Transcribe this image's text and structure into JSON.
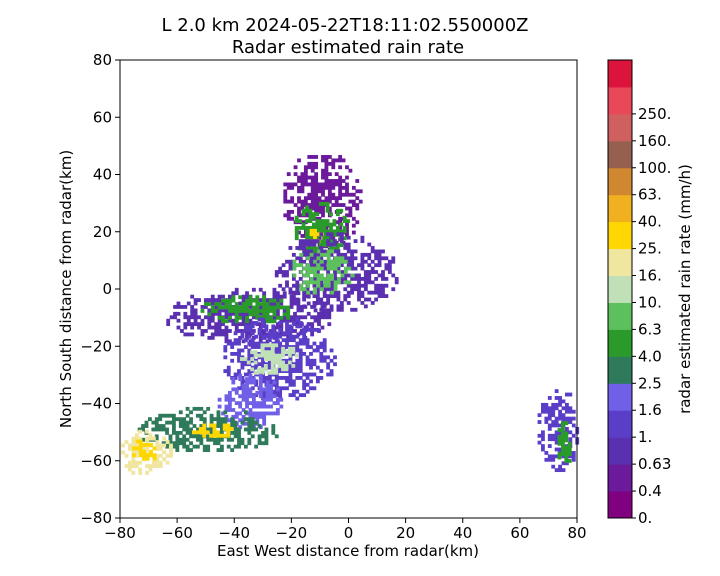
{
  "chart_data": {
    "type": "heatmap",
    "title_line1": "L 2.0 km 2024-05-22T18:11:02.550000Z",
    "title_line2": "Radar estimated rain rate",
    "xlabel": "East West distance from radar(km)",
    "ylabel": "North South distance from radar(km)",
    "xlim": [
      -80,
      80
    ],
    "ylim": [
      -80,
      80
    ],
    "xticks": [
      "−80",
      "−60",
      "−40",
      "−20",
      "0",
      "20",
      "40",
      "60",
      "80"
    ],
    "yticks": [
      "80",
      "60",
      "40",
      "20",
      "0",
      "−20",
      "−40",
      "−60",
      "−80"
    ],
    "xtick_values": [
      -80,
      -60,
      -40,
      -20,
      0,
      20,
      40,
      60,
      80
    ],
    "ytick_values": [
      80,
      60,
      40,
      20,
      0,
      -20,
      -40,
      -60,
      -80
    ],
    "colorbar": {
      "label": "radar estimated rain rate (mm/h)",
      "levels": [
        {
          "label": "0.",
          "color": "#800080"
        },
        {
          "label": "0.4",
          "color": "#6a1a9a"
        },
        {
          "label": "0.63",
          "color": "#5a30b0"
        },
        {
          "label": "1.",
          "color": "#5b3ec8"
        },
        {
          "label": "1.6",
          "color": "#7060e8"
        },
        {
          "label": "2.5",
          "color": "#2e7a5a"
        },
        {
          "label": "4.0",
          "color": "#2a9a2a"
        },
        {
          "label": "6.3",
          "color": "#5cc05c"
        },
        {
          "label": "10.",
          "color": "#c0e0b8"
        },
        {
          "label": "16.",
          "color": "#f0e6a0"
        },
        {
          "label": "25.",
          "color": "#ffd700"
        },
        {
          "label": "40.",
          "color": "#f0b020"
        },
        {
          "label": "63.",
          "color": "#d08830"
        },
        {
          "label": "100.",
          "color": "#956050"
        },
        {
          "label": "160.",
          "color": "#d06060"
        },
        {
          "label": "250.",
          "color": "#e84858"
        },
        {
          "label": "",
          "color": "#dc143c"
        }
      ]
    },
    "echo_regions": [
      {
        "x": -10,
        "y": 30,
        "rx": 14,
        "ry": 18,
        "level": 1
      },
      {
        "x": -10,
        "y": 20,
        "rx": 10,
        "ry": 10,
        "level": 6
      },
      {
        "x": -12,
        "y": 18,
        "rx": 4,
        "ry": 3,
        "level": 10
      },
      {
        "x": -5,
        "y": 5,
        "rx": 22,
        "ry": 14,
        "level": 2
      },
      {
        "x": -10,
        "y": 5,
        "rx": 12,
        "ry": 8,
        "level": 7
      },
      {
        "x": -35,
        "y": -10,
        "rx": 30,
        "ry": 10,
        "level": 2
      },
      {
        "x": -35,
        "y": -8,
        "rx": 18,
        "ry": 5,
        "level": 6
      },
      {
        "x": -25,
        "y": -25,
        "rx": 20,
        "ry": 15,
        "level": 3
      },
      {
        "x": -28,
        "y": -25,
        "rx": 10,
        "ry": 6,
        "level": 8
      },
      {
        "x": -35,
        "y": -40,
        "rx": 12,
        "ry": 10,
        "level": 4
      },
      {
        "x": -50,
        "y": -50,
        "rx": 25,
        "ry": 8,
        "level": 5
      },
      {
        "x": -48,
        "y": -50,
        "rx": 8,
        "ry": 3,
        "level": 10
      },
      {
        "x": -72,
        "y": -58,
        "rx": 10,
        "ry": 8,
        "level": 9
      },
      {
        "x": -72,
        "y": -57,
        "rx": 5,
        "ry": 4,
        "level": 10
      },
      {
        "x": 73,
        "y": -50,
        "rx": 8,
        "ry": 15,
        "level": 3
      },
      {
        "x": 75,
        "y": -55,
        "rx": 3,
        "ry": 8,
        "level": 6
      }
    ]
  }
}
